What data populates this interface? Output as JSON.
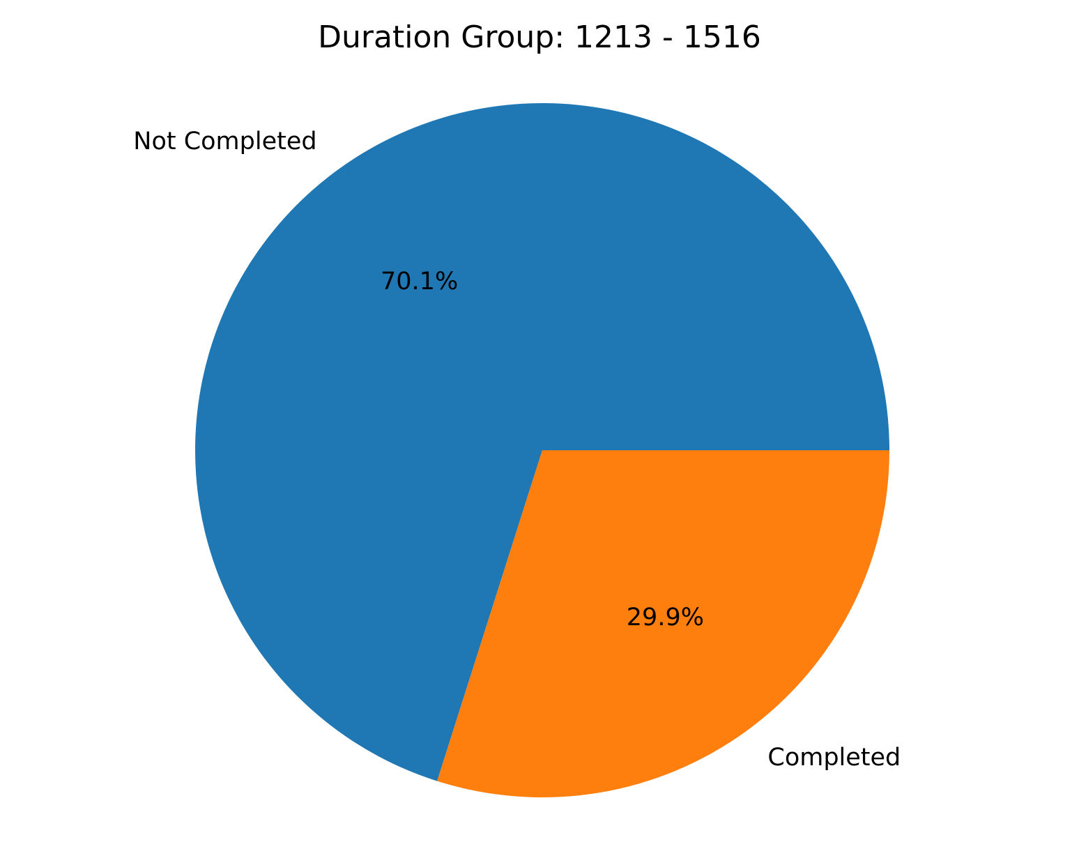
{
  "chart_data": {
    "type": "pie",
    "title": "Duration Group: 1213 - 1516",
    "categories": [
      "Not Completed",
      "Completed"
    ],
    "values": [
      70.1,
      29.9
    ],
    "value_labels": [
      "70.1%",
      "29.9%"
    ],
    "colors": [
      "#1f77b4",
      "#ff7f0e"
    ],
    "start_angle_deg": 0,
    "direction": "counterclockwise",
    "legend": "none"
  }
}
